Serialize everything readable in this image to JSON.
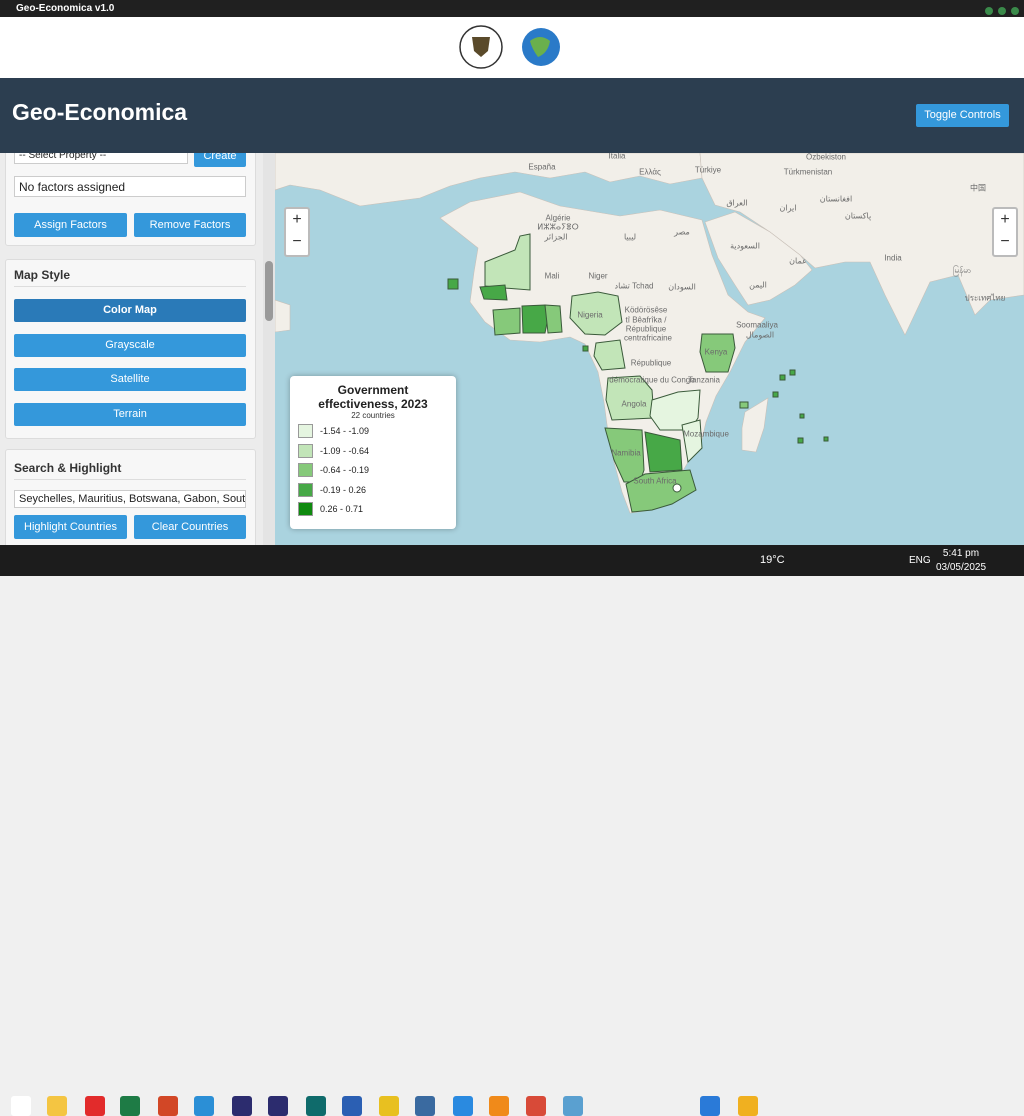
{
  "window": {
    "title": "Geo-Economica v1.0"
  },
  "header": {
    "title": "Geo-Economica",
    "toggle_button": "Toggle Controls"
  },
  "sidebar": {
    "factors": {
      "select": "-- Select Property --",
      "create_button": "Create",
      "status": "No factors assigned",
      "assign_button": "Assign Factors",
      "remove_button": "Remove Factors"
    },
    "map_style": {
      "heading": "Map Style",
      "buttons": [
        "Color Map",
        "Grayscale",
        "Satellite",
        "Terrain"
      ]
    },
    "search": {
      "heading": "Search & Highlight",
      "input": "Seychelles, Mauritius, Botswana, Gabon, South Afr",
      "highlight_button": "Highlight Countries",
      "clear_button": "Clear Countries"
    }
  },
  "map": {
    "labels": [
      "España",
      "Italia",
      "Ελλάς",
      "Türkiye",
      "Özbekiston",
      "Türkmenistan",
      "Algérie",
      "ⵍⵣⵣⴰⵢⴻⵔ",
      "الجزائر",
      "ليبيا",
      "مصر",
      "Mali",
      "Niger",
      "تشاد Tchad",
      "السودان",
      "Nigeria",
      "Ködörösêse",
      "tî Bêafrîka /",
      "République",
      "centrafricaine",
      "République",
      "démocratique du Congo",
      "Kenya",
      "Soomaaliya",
      "الصومال",
      "Tanzania",
      "Angola",
      "Mozambique",
      "Namibia",
      "South Africa",
      "العراق",
      "ایران",
      "افغانستان",
      "پاکستان",
      "السعودية",
      "اليمن",
      "عمان",
      "India",
      "中国",
      "မြန်မာ",
      "ประเทศไทย"
    ],
    "legend": {
      "title": "Government effectiveness, 2023",
      "subtitle": "22 countries",
      "items": [
        {
          "label": "-1.54 - -1.09",
          "color": "#e5f5e0"
        },
        {
          "label": "-1.09 - -0.64",
          "color": "#c2e5b8"
        },
        {
          "label": "-0.64 - -0.19",
          "color": "#86c97a"
        },
        {
          "label": "-0.19 - 0.26",
          "color": "#47a847"
        },
        {
          "label": "0.26 - 0.71",
          "color": "#0f8a0f"
        }
      ]
    }
  },
  "taskbar": {
    "weather": "19°C",
    "language": "ENG",
    "time": "5:41 pm",
    "date": "03/05/2025"
  }
}
